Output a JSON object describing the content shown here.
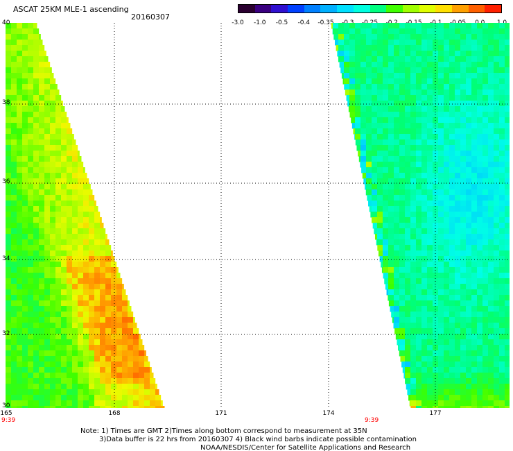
{
  "title": "ASCAT 25KM MLE-1 ascending",
  "date": "20160307",
  "colorbar": {
    "labels": [
      "-3.0",
      "-1.0",
      "-0.5",
      "-0.4",
      "-0.35",
      "-0.3",
      "-0.25",
      "-0.2",
      "-0.15",
      "-0.1",
      "-0.05",
      "0.0",
      "1.0"
    ],
    "colors": [
      "#2a0030",
      "#3a0080",
      "#3010d0",
      "#0040ff",
      "#0080ff",
      "#00b0ff",
      "#00e0ff",
      "#00ffe0",
      "#00ff80",
      "#40ff00",
      "#a0ff00",
      "#e0ff00",
      "#ffe000",
      "#ffa000",
      "#ff6000",
      "#ff2000"
    ]
  },
  "axes": {
    "y_ticks": [
      "40",
      "38",
      "36",
      "34",
      "32",
      "30"
    ],
    "x_ticks": [
      "165",
      "168",
      "171",
      "174",
      "177"
    ],
    "time_labels": [
      "9:39",
      "9:39"
    ]
  },
  "notes": [
    "Note: 1) Times are GMT 2)Times along bottom correspond to measurement at 35N",
    "3)Data buffer is 22 hrs from 20160307 4) Black wind barbs indicate possible contamination",
    "NOAA/NESDIS/Center for Satellite Applications and Research"
  ]
}
